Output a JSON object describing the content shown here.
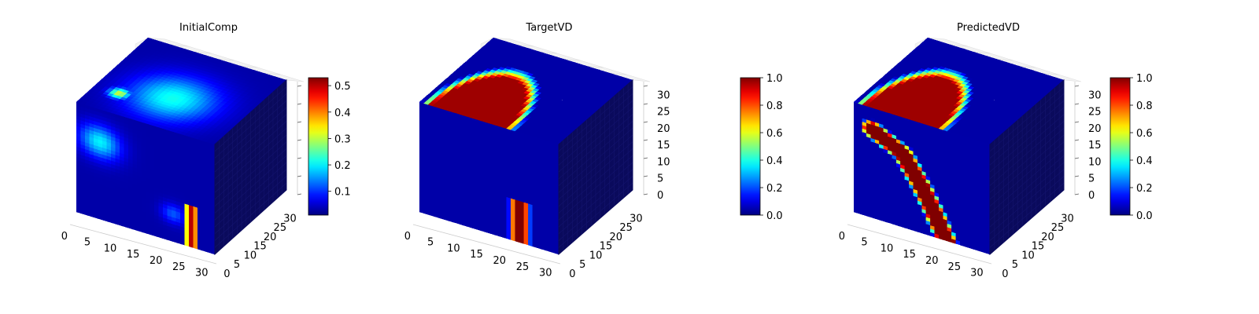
{
  "figure": {
    "colormap": "jet",
    "panels": [
      {
        "title": "InitialComp"
      },
      {
        "title": "TargetVD"
      },
      {
        "title": "PredictedVD"
      }
    ]
  },
  "chart_data": [
    {
      "type": "heatmap",
      "subtype": "3d-voxel",
      "title": "InitialComp",
      "grid_size": [
        32,
        32,
        32
      ],
      "colormap": "jet",
      "x_ticks": [
        "0",
        "5",
        "10",
        "15",
        "20",
        "25",
        "30"
      ],
      "y_ticks": [
        "0",
        "5",
        "10",
        "15",
        "20",
        "25",
        "30"
      ],
      "z_ticks": [],
      "colorbar": {
        "range": [
          0.01,
          0.53
        ],
        "ticks": [
          "0.1",
          "0.2",
          "0.3",
          "0.4",
          "0.5"
        ]
      },
      "features": [
        {
          "type": "blob",
          "face": "top",
          "cx": 0.5,
          "cy": 0.38,
          "r": 0.34,
          "value": 0.22
        },
        {
          "type": "blob",
          "face": "top",
          "cx": 0.18,
          "cy": 0.25,
          "r": 0.08,
          "value": 0.33
        },
        {
          "type": "blob",
          "face": "front",
          "cx": 0.17,
          "cy": 0.3,
          "r": 0.17,
          "value": 0.2
        },
        {
          "type": "blob",
          "face": "front",
          "cx": 0.7,
          "cy": 0.75,
          "r": 0.1,
          "value": 0.12
        },
        {
          "type": "stripe",
          "face": "front",
          "x": 0.83,
          "y0": 0.64,
          "y1": 1.0,
          "w": 0.05,
          "value": 0.5
        }
      ]
    },
    {
      "type": "heatmap",
      "subtype": "3d-voxel",
      "title": "TargetVD",
      "grid_size": [
        32,
        32,
        32
      ],
      "colormap": "jet",
      "x_ticks": [
        "0",
        "5",
        "10",
        "15",
        "20",
        "25",
        "30"
      ],
      "y_ticks": [
        "0",
        "5",
        "10",
        "15",
        "20",
        "25",
        "30"
      ],
      "z_ticks": [
        "0",
        "5",
        "10",
        "15",
        "20",
        "25",
        "30"
      ],
      "colorbar": {
        "range": [
          0.0,
          1.0
        ],
        "ticks": [
          "0.0",
          "0.2",
          "0.4",
          "0.6",
          "0.8",
          "1.0"
        ]
      },
      "features": [
        {
          "type": "halfdisk",
          "face": "top",
          "cx": 0.35,
          "cy": 0.0,
          "rx": 0.33,
          "ry": 0.72,
          "value": 1.0
        },
        {
          "type": "stripe",
          "face": "front",
          "x": 0.72,
          "y0": 0.64,
          "y1": 1.0,
          "w": 0.08,
          "value": 1.0
        }
      ]
    },
    {
      "type": "heatmap",
      "subtype": "3d-voxel",
      "title": "PredictedVD",
      "grid_size": [
        32,
        32,
        32
      ],
      "colormap": "jet",
      "x_ticks": [
        "0",
        "5",
        "10",
        "15",
        "20",
        "25",
        "30"
      ],
      "y_ticks": [
        "0",
        "5",
        "10",
        "15",
        "20",
        "25",
        "30"
      ],
      "z_ticks": [
        "0",
        "5",
        "10",
        "15",
        "20",
        "25",
        "30"
      ],
      "colorbar": {
        "range": [
          0.0,
          1.0
        ],
        "ticks": [
          "0.0",
          "0.2",
          "0.4",
          "0.6",
          "0.8",
          "1.0"
        ]
      },
      "features": [
        {
          "type": "halfdisk",
          "face": "top",
          "cx": 0.35,
          "cy": 0.0,
          "rx": 0.33,
          "ry": 0.72,
          "value": 1.0
        },
        {
          "type": "path",
          "face": "front",
          "points": [
            [
              0.14,
              0.2
            ],
            [
              0.36,
              0.33
            ],
            [
              0.5,
              0.58
            ],
            [
              0.6,
              0.8
            ],
            [
              0.68,
              1.0
            ]
          ],
          "w": 0.07,
          "value": 1.0
        }
      ]
    }
  ]
}
